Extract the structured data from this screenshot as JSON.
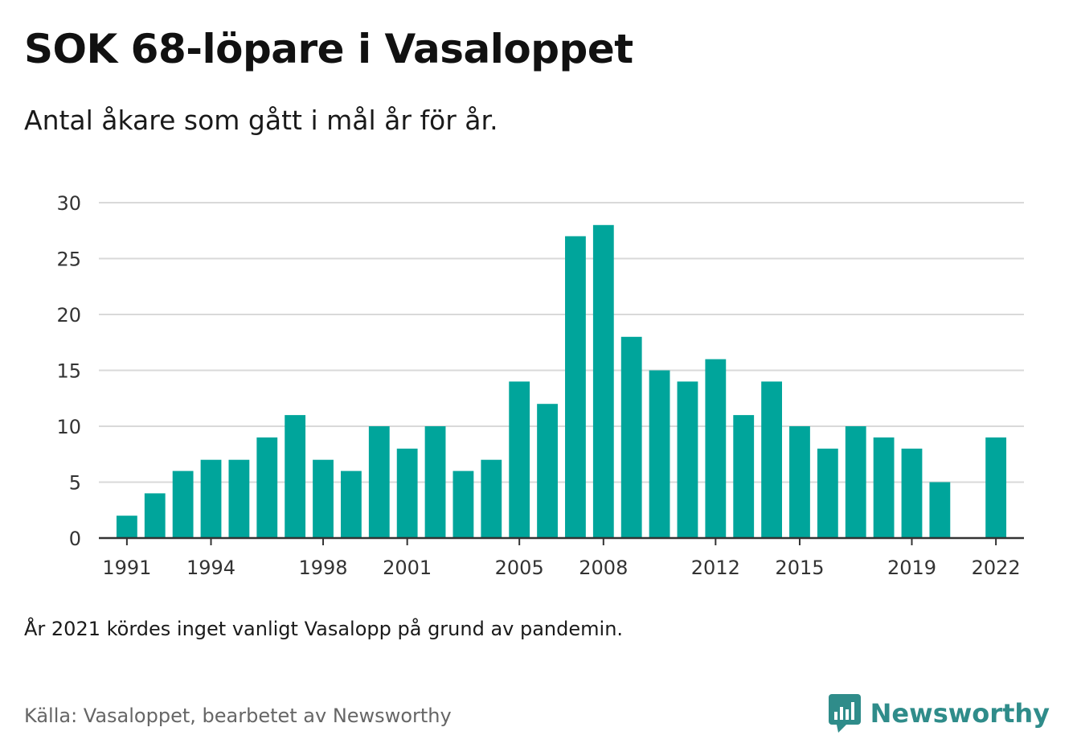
{
  "title": "SOK 68-löpare i Vasaloppet",
  "subtitle": "Antal åkare som gått i mål år för år.",
  "note": "År 2021 kördes inget vanligt Vasalopp på grund av pandemin.",
  "source": "Källa: Vasaloppet, bearbetet av Newsworthy",
  "brand": {
    "name": "Newsworthy",
    "icon": "newsworthy-logo-icon",
    "color": "#2f8c8a"
  },
  "colors": {
    "bar": "#00a59b",
    "grid": "#d9d9d9",
    "axis": "#333333",
    "tick_text": "#333333"
  },
  "chart_data": {
    "type": "bar",
    "title": "SOK 68-löpare i Vasaloppet",
    "subtitle": "Antal åkare som gått i mål år för år.",
    "xlabel": "",
    "ylabel": "",
    "x": [
      1991,
      1992,
      1993,
      1994,
      1995,
      1996,
      1997,
      1998,
      1999,
      2000,
      2001,
      2002,
      2003,
      2004,
      2005,
      2006,
      2007,
      2008,
      2009,
      2010,
      2011,
      2012,
      2013,
      2014,
      2015,
      2016,
      2017,
      2018,
      2019,
      2020,
      2021,
      2022
    ],
    "values": [
      2,
      4,
      6,
      7,
      7,
      9,
      11,
      7,
      6,
      10,
      8,
      10,
      6,
      7,
      14,
      12,
      27,
      28,
      18,
      15,
      14,
      16,
      11,
      14,
      10,
      8,
      10,
      9,
      8,
      5,
      null,
      9
    ],
    "x_ticks": [
      "1991",
      "1994",
      "1998",
      "2001",
      "2005",
      "2008",
      "2012",
      "2015",
      "2019",
      "2022"
    ],
    "y_ticks": [
      "0",
      "5",
      "10",
      "15",
      "20",
      "25",
      "30"
    ],
    "ylim": [
      0,
      30
    ],
    "xlim": [
      1990,
      2023
    ],
    "grid": true,
    "legend": "none"
  }
}
